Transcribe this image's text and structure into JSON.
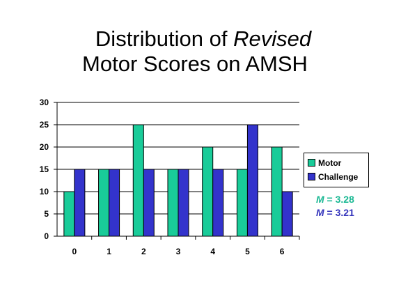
{
  "title": {
    "line1_prefix": "Distribution of ",
    "line1_italic": "Revised",
    "line2": "Motor Scores on AMSH"
  },
  "chart_data": {
    "type": "bar",
    "categories": [
      "0",
      "1",
      "2",
      "3",
      "4",
      "5",
      "6"
    ],
    "series": [
      {
        "name": "Motor",
        "values": [
          10,
          15,
          25,
          15,
          20,
          15,
          20
        ],
        "color": "#19cc99"
      },
      {
        "name": "Challenge",
        "values": [
          15,
          15,
          15,
          15,
          15,
          25,
          10
        ],
        "color": "#3333cc"
      }
    ],
    "ylim": [
      0,
      30
    ],
    "yticks": [
      "0",
      "5",
      "10",
      "15",
      "20",
      "25",
      "30"
    ],
    "grid": true,
    "legend_position": "right"
  },
  "legend": [
    {
      "label": "Motor",
      "color": "#19cc99"
    },
    {
      "label": "Challenge",
      "color": "#3333cc"
    }
  ],
  "means": [
    {
      "symbol": "M",
      "text": " = 3.28",
      "color": "#19b893"
    },
    {
      "symbol": "M",
      "text": " = 3.21",
      "color": "#3333bb"
    }
  ]
}
